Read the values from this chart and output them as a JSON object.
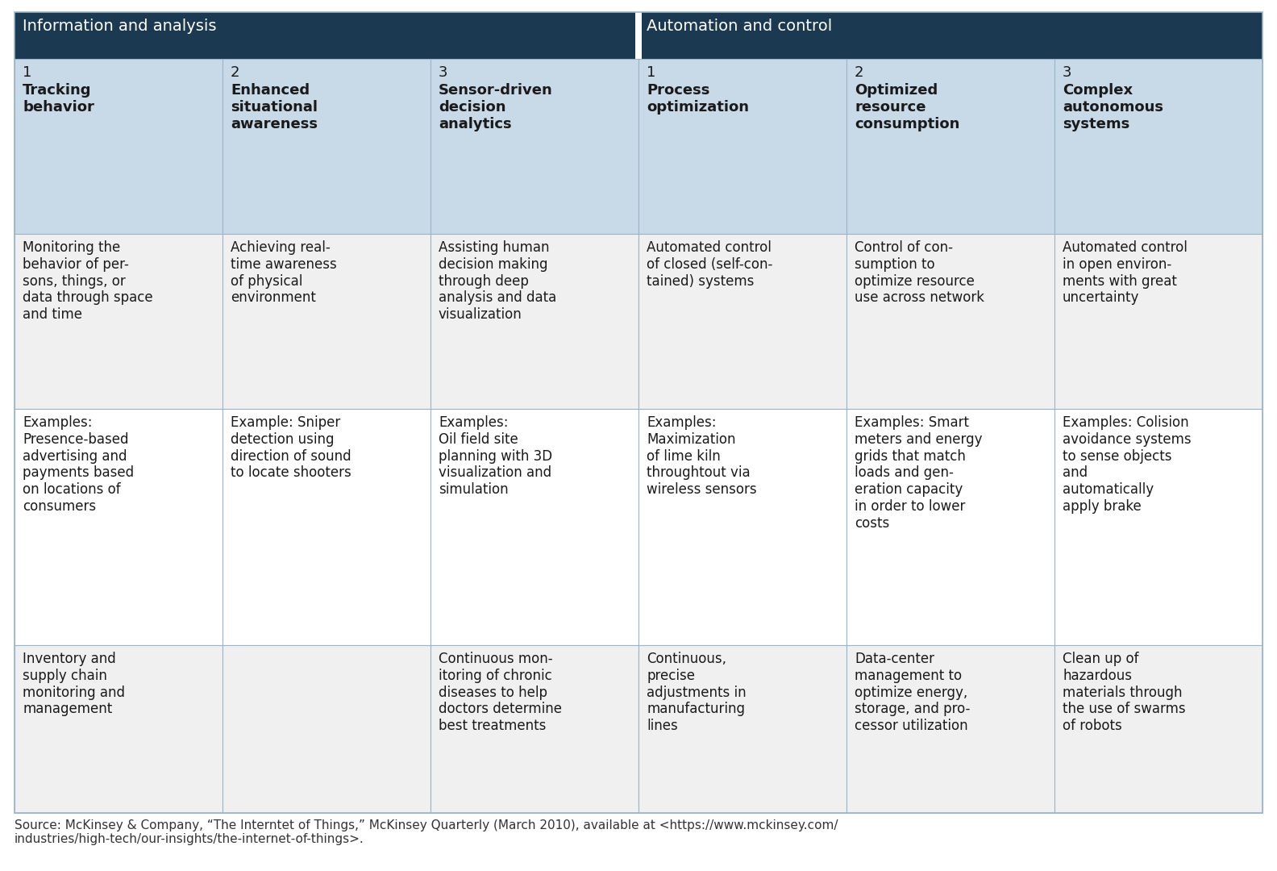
{
  "fig_width": 15.84,
  "fig_height": 10.8,
  "dpi": 100,
  "header_bg_color": "#1b3a52",
  "header_text_color": "#ffffff",
  "subheader_bg_color": "#c8d9e8",
  "row_bg_light": "#f0f0f0",
  "row_bg_white": "#ffffff",
  "text_color": "#1a1a1a",
  "border_color": "#9ab5c8",
  "col_headers": [
    {
      "group": "Information and analysis",
      "cols": [
        {
          "num": "1",
          "title": "Tracking\nbehavior"
        },
        {
          "num": "2",
          "title": "Enhanced\nsituational\nawareness"
        },
        {
          "num": "3",
          "title": "Sensor-driven\ndecision\nanalytics"
        }
      ]
    },
    {
      "group": "Automation and control",
      "cols": [
        {
          "num": "1",
          "title": "Process\noptimization"
        },
        {
          "num": "2",
          "title": "Optimized\nresource\nconsumption"
        },
        {
          "num": "3",
          "title": "Complex\nautonomous\nsystems"
        }
      ]
    }
  ],
  "rows": [
    [
      "Monitoring the\nbehavior of per-\nsons, things, or\ndata through space\nand time",
      "Achieving real-\ntime awareness\nof physical\nenvironment",
      "Assisting human\ndecision making\nthrough deep\nanalysis and data\nvisualization",
      "Automated control\nof closed (self-con-\ntained) systems",
      "Control of con-\nsumption to\noptimize resource\nuse across network",
      "Automated control\nin open environ-\nments with great\nuncertainty"
    ],
    [
      "Examples:\nPresence-based\nadvertising and\npayments based\non locations of\nconsumers",
      "Example: Sniper\ndetection using\ndirection of sound\nto locate shooters",
      "Examples:\nOil field site\nplanning with 3D\nvisualization and\nsimulation",
      "Examples:\nMaximization\nof lime kiln\nthroughtout via\nwireless sensors",
      "Examples: Smart\nmeters and energy\ngrids that match\nloads and gen-\neration capacity\nin order to lower\ncosts",
      "Examples: Colision\navoidance systems\nto sense objects\nand\nautomatically\napply brake"
    ],
    [
      "Inventory and\nsupply chain\nmonitoring and\nmanagement",
      "",
      "Continuous mon-\nitoring of chronic\ndiseases to help\ndoctors determine\nbest treatments",
      "Continuous,\nprecise\nadjustments in\nmanufacturing\nlines",
      "Data-center\nmanagement to\noptimize energy,\nstorage, and pro-\ncessor utilization",
      "Clean up of\nhazardous\nmaterials through\nthe use of swarms\nof robots"
    ]
  ],
  "caption": "Source: McKinsey & Company, “The Interntet of Things,” McKinsey Quarterly (March 2010), available at <https://www.mckinsey.com/\nindustries/high-tech/our-insights/the-internet-of-things>.",
  "group_header_fontsize": 14,
  "subheader_num_fontsize": 13,
  "subheader_title_fontsize": 13,
  "cell_fontsize": 12,
  "caption_fontsize": 11
}
